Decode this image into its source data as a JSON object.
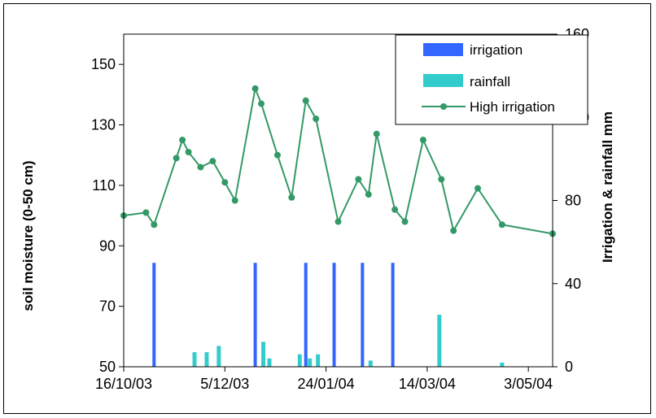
{
  "chart_data": {
    "type": "line",
    "title": "",
    "xlabel": "",
    "ylabel": "soil moisture (0-50 cm)",
    "y2label": "Irrigation & rainfall mm",
    "x_axis_type": "date",
    "xlim": [
      "2003-10-16",
      "2004-05-15"
    ],
    "ylim": [
      50,
      160
    ],
    "y2lim": [
      0,
      160
    ],
    "x_tick_labels": [
      "16/10/03",
      "5/12/03",
      "24/01/04",
      "14/03/04",
      "3/05/04"
    ],
    "x_ticks": [
      "2003-10-16",
      "2003-12-05",
      "2004-01-24",
      "2004-03-14",
      "2004-05-03"
    ],
    "y_ticks": [
      50,
      70,
      90,
      110,
      130,
      150
    ],
    "y2_ticks": [
      0,
      40,
      80,
      120,
      160
    ],
    "grid": false,
    "legend_position": "top-right",
    "colors": {
      "irrigation": "#3366ff",
      "rainfall": "#33cccc",
      "high_irrigation": "#339966"
    },
    "series": [
      {
        "name": "irrigation",
        "type": "bar",
        "axis": "right",
        "points": [
          {
            "x": "2003-10-31",
            "y": 50
          },
          {
            "x": "2003-12-20",
            "y": 50
          },
          {
            "x": "2004-01-14",
            "y": 50
          },
          {
            "x": "2004-01-28",
            "y": 50
          },
          {
            "x": "2004-02-11",
            "y": 50
          },
          {
            "x": "2004-02-26",
            "y": 50
          }
        ]
      },
      {
        "name": "rainfall",
        "type": "bar",
        "axis": "right",
        "points": [
          {
            "x": "2003-11-20",
            "y": 7
          },
          {
            "x": "2003-11-26",
            "y": 7
          },
          {
            "x": "2003-12-02",
            "y": 10
          },
          {
            "x": "2003-12-24",
            "y": 12
          },
          {
            "x": "2003-12-27",
            "y": 4
          },
          {
            "x": "2004-01-11",
            "y": 6
          },
          {
            "x": "2004-01-16",
            "y": 4
          },
          {
            "x": "2004-01-20",
            "y": 6
          },
          {
            "x": "2004-02-15",
            "y": 3
          },
          {
            "x": "2004-03-20",
            "y": 25
          },
          {
            "x": "2004-04-20",
            "y": 2
          }
        ]
      },
      {
        "name": "High irrigation",
        "type": "line",
        "axis": "left",
        "points": [
          {
            "x": "2003-10-16",
            "y": 100
          },
          {
            "x": "2003-10-27",
            "y": 101
          },
          {
            "x": "2003-10-31",
            "y": 97
          },
          {
            "x": "2003-11-11",
            "y": 119
          },
          {
            "x": "2003-11-14",
            "y": 125
          },
          {
            "x": "2003-11-17",
            "y": 121
          },
          {
            "x": "2003-11-23",
            "y": 116
          },
          {
            "x": "2003-11-29",
            "y": 118
          },
          {
            "x": "2003-12-05",
            "y": 111
          },
          {
            "x": "2003-12-10",
            "y": 105
          },
          {
            "x": "2003-12-20",
            "y": 142
          },
          {
            "x": "2003-12-23",
            "y": 137
          },
          {
            "x": "2003-12-31",
            "y": 120
          },
          {
            "x": "2004-01-07",
            "y": 106
          },
          {
            "x": "2004-01-14",
            "y": 138
          },
          {
            "x": "2004-01-19",
            "y": 132
          },
          {
            "x": "2004-01-30",
            "y": 98
          },
          {
            "x": "2004-02-09",
            "y": 112
          },
          {
            "x": "2004-02-14",
            "y": 107
          },
          {
            "x": "2004-02-18",
            "y": 127
          },
          {
            "x": "2004-02-27",
            "y": 102
          },
          {
            "x": "2004-03-03",
            "y": 98
          },
          {
            "x": "2004-03-12",
            "y": 125
          },
          {
            "x": "2004-03-21",
            "y": 112
          },
          {
            "x": "2004-03-27",
            "y": 95
          },
          {
            "x": "2004-04-08",
            "y": 109
          },
          {
            "x": "2004-04-20",
            "y": 97
          },
          {
            "x": "2004-05-15",
            "y": 94
          }
        ]
      }
    ]
  }
}
